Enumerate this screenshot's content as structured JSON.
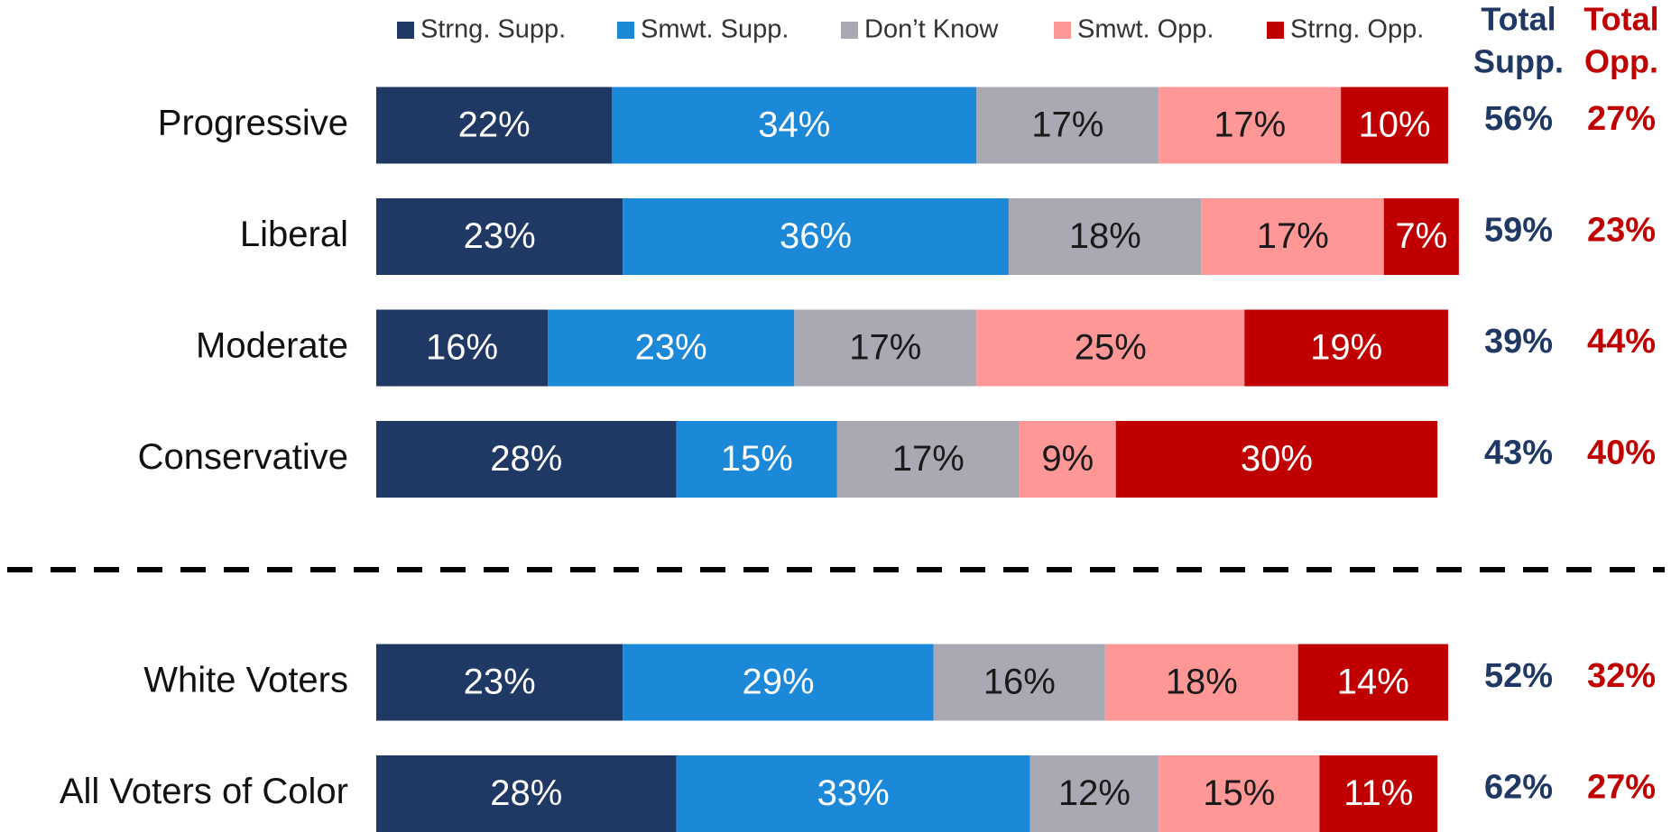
{
  "chart_data": {
    "type": "stacked-bar-horizontal",
    "categories": [
      "Progressive",
      "Liberal",
      "Moderate",
      "Conservative",
      "White Voters",
      "All Voters of Color"
    ],
    "xlim": [
      0,
      100
    ],
    "series": [
      {
        "name": "Strng. Supp.",
        "color": "#1f3864",
        "text_color": "#ffffff",
        "values": [
          22,
          23,
          16,
          28,
          23,
          28
        ],
        "value_labels": [
          "22%",
          "23%",
          "16%",
          "28%",
          "23%",
          "28%"
        ]
      },
      {
        "name": "Smwt. Supp.",
        "color": "#1b88d8",
        "text_color": "#ffffff",
        "values": [
          34,
          36,
          23,
          15,
          29,
          33
        ],
        "value_labels": [
          "34%",
          "36%",
          "23%",
          "15%",
          "29%",
          "33%"
        ]
      },
      {
        "name": "Don’t Know",
        "color": "#a9a9b4",
        "text_color": "#1a1a1a",
        "values": [
          17,
          18,
          17,
          17,
          16,
          12
        ],
        "value_labels": [
          "17%",
          "18%",
          "17%",
          "17%",
          "16%",
          "12%"
        ]
      },
      {
        "name": "Smwt. Opp.",
        "color": "#ff9797",
        "text_color": "#1a1a1a",
        "values": [
          17,
          17,
          25,
          9,
          18,
          15
        ],
        "value_labels": [
          "17%",
          "17%",
          "25%",
          "9%",
          "18%",
          "15%"
        ]
      },
      {
        "name": "Strng. Opp.",
        "color": "#c00000",
        "text_color": "#ffffff",
        "values": [
          10,
          7,
          19,
          30,
          14,
          11
        ],
        "value_labels": [
          "10%",
          "7%",
          "19%",
          "30%",
          "14%",
          "11%"
        ]
      }
    ],
    "total_columns": [
      {
        "header": [
          "Total",
          "Supp."
        ],
        "color": "#1f3864",
        "values": [
          56,
          59,
          39,
          43,
          52,
          62
        ],
        "value_labels": [
          "56%",
          "59%",
          "39%",
          "43%",
          "52%",
          "62%"
        ]
      },
      {
        "header": [
          "Total",
          "Opp."
        ],
        "color": "#c00000",
        "values": [
          27,
          23,
          44,
          40,
          32,
          27
        ],
        "value_labels": [
          "27%",
          "23%",
          "44%",
          "40%",
          "32%",
          "27%"
        ]
      }
    ]
  }
}
